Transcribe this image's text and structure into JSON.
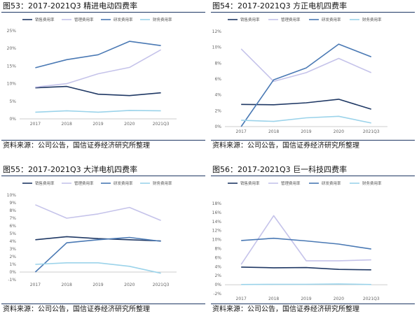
{
  "colors": {
    "sales": "#1f3864",
    "admin": "#c5c3ea",
    "rnd": "#4a79b4",
    "fin": "#9bd3ea"
  },
  "chart_data": [
    {
      "type": "line",
      "title": "图53：2017-2021Q3 精进电动四费率",
      "source": "资料来源：公司公告，国信证券经济研究所整理",
      "categories": [
        "2017",
        "2018",
        "2019",
        "2020",
        "2021Q3"
      ],
      "yticks": [
        "0%",
        "5%",
        "10%",
        "15%",
        "20%",
        "25%"
      ],
      "ylim": [
        0,
        25
      ],
      "series": [
        {
          "name": "销售费用率",
          "key": "sales",
          "values": [
            8.8,
            9.2,
            7.0,
            6.6,
            7.4
          ]
        },
        {
          "name": "管理费用率",
          "key": "admin",
          "values": [
            9.0,
            10.0,
            12.8,
            14.6,
            19.6
          ]
        },
        {
          "name": "研发费用率",
          "key": "rnd",
          "values": [
            14.5,
            16.8,
            18.2,
            22.0,
            20.8
          ]
        },
        {
          "name": "财务费用率",
          "key": "fin",
          "values": [
            1.9,
            2.3,
            1.9,
            2.4,
            2.3
          ]
        }
      ]
    },
    {
      "type": "line",
      "title": "图54：2017-2021Q3 方正电机四费率",
      "source": "资料来源：公司公告，国信证券经济研究所整理",
      "categories": [
        "2017",
        "2018",
        "2019",
        "2020",
        "2021Q3"
      ],
      "yticks": [
        "0%",
        "2%",
        "4%",
        "6%",
        "8%",
        "10%",
        "12%"
      ],
      "ylim": [
        0,
        12
      ],
      "series": [
        {
          "name": "销售费用率",
          "key": "sales",
          "values": [
            2.8,
            2.75,
            3.0,
            3.45,
            2.2
          ]
        },
        {
          "name": "管理费用率",
          "key": "admin",
          "values": [
            9.8,
            5.7,
            6.8,
            8.6,
            6.8
          ]
        },
        {
          "name": "研发费用率",
          "key": "rnd",
          "values": [
            0.0,
            5.9,
            7.4,
            10.4,
            8.8
          ]
        },
        {
          "name": "财务费用率",
          "key": "fin",
          "values": [
            0.8,
            0.65,
            1.1,
            1.3,
            0.45
          ]
        }
      ]
    },
    {
      "type": "line",
      "title": "图55：2017-2021Q3 大洋电机四费率",
      "source": "资料来源：公司公告，国信证券经济研究所整理",
      "categories": [
        "2017",
        "2018",
        "2019",
        "2020",
        "2021Q3"
      ],
      "yticks": [
        "-1%",
        "0%",
        "1%",
        "2%",
        "3%",
        "4%",
        "5%",
        "6%",
        "7%",
        "8%",
        "9%",
        "10%"
      ],
      "ylim": [
        -1,
        10
      ],
      "series": [
        {
          "name": "销售费用率",
          "key": "sales",
          "values": [
            4.2,
            4.6,
            4.35,
            4.2,
            4.05
          ]
        },
        {
          "name": "管理费用率",
          "key": "admin",
          "values": [
            8.75,
            7.0,
            7.55,
            8.4,
            6.7
          ]
        },
        {
          "name": "研发费用率",
          "key": "rnd",
          "values": [
            0.0,
            3.8,
            4.2,
            4.5,
            4.0
          ]
        },
        {
          "name": "财务费用率",
          "key": "fin",
          "values": [
            1.0,
            1.2,
            1.2,
            0.75,
            -0.15
          ]
        }
      ]
    },
    {
      "type": "line",
      "title": "图56：2017-2021Q3 巨一科技四费率",
      "source": "资料来源：公司公告，国信证券经济研究所整理",
      "categories": [
        "2017",
        "2018",
        "2019",
        "2020",
        "2021Q3"
      ],
      "yticks": [
        "-2%",
        "0%",
        "2%",
        "4%",
        "6%",
        "8%",
        "10%",
        "12%",
        "14%",
        "16%",
        "18%"
      ],
      "ylim": [
        -2,
        18
      ],
      "series": [
        {
          "name": "销售费用率",
          "key": "sales",
          "values": [
            3.9,
            3.75,
            3.8,
            3.4,
            3.3
          ]
        },
        {
          "name": "管理费用率",
          "key": "admin",
          "values": [
            4.5,
            15.3,
            5.3,
            5.3,
            5.5
          ]
        },
        {
          "name": "研发费用率",
          "key": "rnd",
          "values": [
            9.8,
            10.3,
            9.7,
            9.0,
            7.9
          ]
        },
        {
          "name": "财务费用率",
          "key": "fin",
          "values": [
            0.05,
            0.1,
            0.1,
            0.15,
            0.05
          ]
        }
      ]
    }
  ]
}
